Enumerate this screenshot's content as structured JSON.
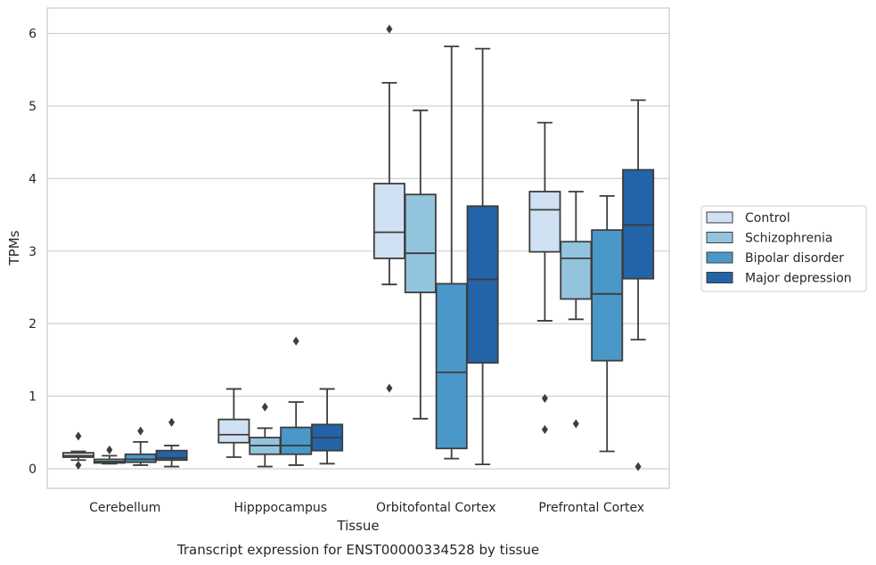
{
  "caption": "Transcript expression for ENST00000334528 by tissue",
  "chart_data": {
    "type": "box",
    "xlabel": "Tissue",
    "ylabel": "TPMs",
    "ylim": [
      -0.27,
      6.35
    ],
    "yticks": [
      0,
      1,
      2,
      3,
      4,
      5,
      6
    ],
    "grid": true,
    "legend_position": "right",
    "categories": [
      "Cerebellum",
      "Hipppocampus",
      "Orbitofontal Cortex",
      "Prefrontal Cortex"
    ],
    "series": [
      {
        "name": "Control",
        "color": "#cfe1f2",
        "boxes": [
          {
            "whisker_low": 0.12,
            "q1": 0.16,
            "median": 0.18,
            "q3": 0.22,
            "whisker_high": 0.24,
            "outliers": [
              0.45,
              0.05
            ]
          },
          {
            "whisker_low": 0.16,
            "q1": 0.36,
            "median": 0.47,
            "q3": 0.68,
            "whisker_high": 1.1,
            "outliers": []
          },
          {
            "whisker_low": 2.54,
            "q1": 2.9,
            "median": 3.26,
            "q3": 3.93,
            "whisker_high": 5.32,
            "outliers": [
              6.06,
              1.11
            ]
          },
          {
            "whisker_low": 2.04,
            "q1": 2.99,
            "median": 3.57,
            "q3": 3.82,
            "whisker_high": 4.77,
            "outliers": [
              0.97,
              0.54
            ]
          }
        ]
      },
      {
        "name": "Schizophrenia",
        "color": "#93c4de",
        "boxes": [
          {
            "whisker_low": 0.07,
            "q1": 0.08,
            "median": 0.1,
            "q3": 0.13,
            "whisker_high": 0.18,
            "outliers": [
              0.26
            ]
          },
          {
            "whisker_low": 0.03,
            "q1": 0.2,
            "median": 0.32,
            "q3": 0.43,
            "whisker_high": 0.56,
            "outliers": [
              0.85
            ]
          },
          {
            "whisker_low": 0.69,
            "q1": 2.43,
            "median": 2.97,
            "q3": 3.78,
            "whisker_high": 4.94,
            "outliers": []
          },
          {
            "whisker_low": 2.06,
            "q1": 2.34,
            "median": 2.9,
            "q3": 3.13,
            "whisker_high": 3.82,
            "outliers": [
              0.62
            ]
          }
        ]
      },
      {
        "name": "Bipolar disorder",
        "color": "#4a98c9",
        "boxes": [
          {
            "whisker_low": 0.05,
            "q1": 0.09,
            "median": 0.13,
            "q3": 0.2,
            "whisker_high": 0.37,
            "outliers": [
              0.52
            ]
          },
          {
            "whisker_low": 0.05,
            "q1": 0.2,
            "median": 0.32,
            "q3": 0.57,
            "whisker_high": 0.92,
            "outliers": [
              1.76
            ]
          },
          {
            "whisker_low": 0.14,
            "q1": 0.28,
            "median": 1.33,
            "q3": 2.55,
            "whisker_high": 5.82,
            "outliers": []
          },
          {
            "whisker_low": 0.24,
            "q1": 1.49,
            "median": 2.41,
            "q3": 3.29,
            "whisker_high": 3.76,
            "outliers": []
          }
        ]
      },
      {
        "name": "Major depression",
        "color": "#2364a8",
        "boxes": [
          {
            "whisker_low": 0.03,
            "q1": 0.12,
            "median": 0.15,
            "q3": 0.25,
            "whisker_high": 0.32,
            "outliers": [
              0.64
            ]
          },
          {
            "whisker_low": 0.07,
            "q1": 0.25,
            "median": 0.43,
            "q3": 0.61,
            "whisker_high": 1.1,
            "outliers": []
          },
          {
            "whisker_low": 0.06,
            "q1": 1.46,
            "median": 2.61,
            "q3": 3.62,
            "whisker_high": 5.79,
            "outliers": []
          },
          {
            "whisker_low": 1.78,
            "q1": 2.62,
            "median": 3.36,
            "q3": 4.12,
            "whisker_high": 5.08,
            "outliers": [
              0.03
            ]
          }
        ]
      }
    ]
  }
}
